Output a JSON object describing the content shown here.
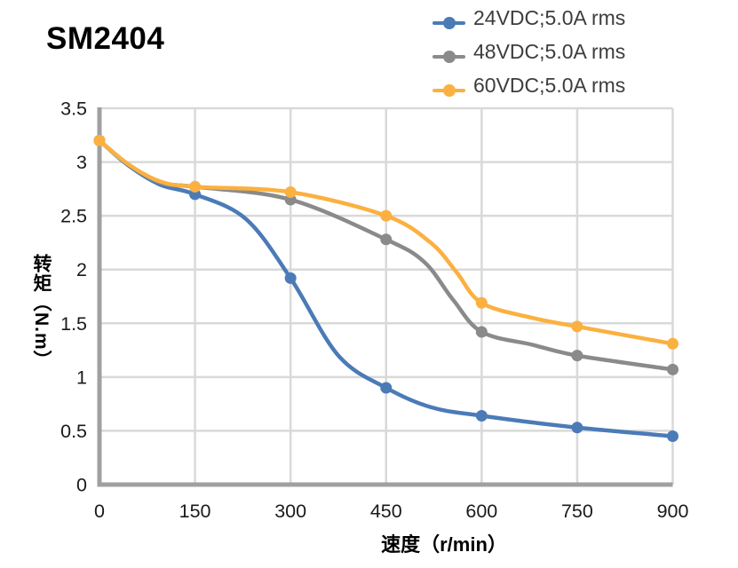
{
  "title": "SM2404",
  "colors": {
    "background": "#ffffff",
    "grid": "#d9d9d9",
    "axis": "#a0a0a0",
    "tick_text": "#1a1a1a",
    "legend_text": "#3d3d3d",
    "title_text": "#000000"
  },
  "chart_data": {
    "type": "line",
    "title": "SM2404",
    "xlabel": "速度（r/min）",
    "ylabel": "转矩（N.m）",
    "xlim": [
      0,
      900
    ],
    "ylim": [
      0,
      3.5
    ],
    "x_ticks": [
      0,
      150,
      300,
      450,
      600,
      750,
      900
    ],
    "y_ticks": [
      0,
      0.5,
      1,
      1.5,
      2,
      2.5,
      3,
      3.5
    ],
    "grid": true,
    "legend_position": "top-right",
    "series": [
      {
        "name": "24VDC;5.0A rms",
        "color": "#4b7bb7",
        "x": [
          0,
          150,
          300,
          450,
          600,
          750,
          900
        ],
        "values": [
          3.2,
          2.7,
          1.92,
          0.9,
          0.64,
          0.53,
          0.45
        ],
        "shape_points": [
          [
            0,
            3.2
          ],
          [
            45,
            2.97
          ],
          [
            95,
            2.79
          ],
          [
            150,
            2.7
          ],
          [
            230,
            2.47
          ],
          [
            300,
            1.92
          ],
          [
            375,
            1.2
          ],
          [
            450,
            0.9
          ],
          [
            520,
            0.72
          ],
          [
            600,
            0.64
          ],
          [
            750,
            0.53
          ],
          [
            900,
            0.45
          ]
        ]
      },
      {
        "name": "48VDC;5.0A rms",
        "color": "#8a8a8a",
        "x": [
          0,
          150,
          300,
          450,
          600,
          750,
          900
        ],
        "values": [
          3.2,
          2.77,
          2.65,
          2.28,
          1.42,
          1.2,
          1.07
        ],
        "shape_points": [
          [
            0,
            3.2
          ],
          [
            45,
            2.98
          ],
          [
            95,
            2.81
          ],
          [
            150,
            2.77
          ],
          [
            300,
            2.65
          ],
          [
            450,
            2.28
          ],
          [
            510,
            2.07
          ],
          [
            555,
            1.72
          ],
          [
            600,
            1.42
          ],
          [
            680,
            1.3
          ],
          [
            750,
            1.2
          ],
          [
            900,
            1.07
          ]
        ]
      },
      {
        "name": "60VDC;5.0A rms",
        "color": "#fbb040",
        "x": [
          0,
          150,
          300,
          450,
          600,
          750,
          900
        ],
        "values": [
          3.2,
          2.77,
          2.72,
          2.5,
          1.69,
          1.47,
          1.31
        ],
        "shape_points": [
          [
            0,
            3.2
          ],
          [
            45,
            2.98
          ],
          [
            95,
            2.82
          ],
          [
            150,
            2.77
          ],
          [
            300,
            2.72
          ],
          [
            450,
            2.5
          ],
          [
            520,
            2.25
          ],
          [
            560,
            1.98
          ],
          [
            600,
            1.69
          ],
          [
            680,
            1.55
          ],
          [
            750,
            1.47
          ],
          [
            900,
            1.31
          ]
        ]
      }
    ]
  }
}
